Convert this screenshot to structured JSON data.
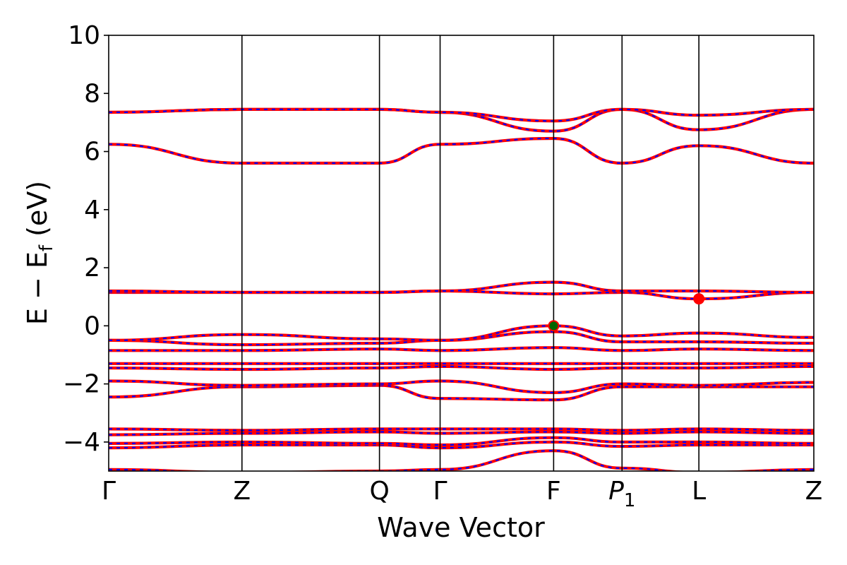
{
  "chart_data": {
    "type": "line",
    "title": "",
    "xlabel": "Wave Vector",
    "ylabel": "E − E_f (eV)",
    "ylabel_main": "E − E",
    "ylabel_sub": "f",
    "ylabel_tail": " (eV)",
    "ylim": [
      -5,
      10
    ],
    "yticks": [
      -4,
      -2,
      0,
      2,
      4,
      6,
      8,
      10
    ],
    "ytick_labels": [
      "−4",
      "−2",
      "0",
      "2",
      "4",
      "6",
      "8",
      "10"
    ],
    "xlim": [
      0,
      1
    ],
    "kpoints": [
      {
        "label": "Γ",
        "x": 0.0,
        "italic": false,
        "sub": ""
      },
      {
        "label": "Z",
        "x": 0.189,
        "italic": false,
        "sub": ""
      },
      {
        "label": "Q",
        "x": 0.384,
        "italic": false,
        "sub": ""
      },
      {
        "label": "Γ",
        "x": 0.47,
        "italic": false,
        "sub": ""
      },
      {
        "label": "F",
        "x": 0.631,
        "italic": false,
        "sub": ""
      },
      {
        "label": "P",
        "x": 0.728,
        "italic": true,
        "sub": "1"
      },
      {
        "label": "L",
        "x": 0.837,
        "italic": false,
        "sub": ""
      },
      {
        "label": "Z",
        "x": 1.0,
        "italic": false,
        "sub": ""
      }
    ],
    "grid": false,
    "legend": "none",
    "colors": {
      "band_solid": "#ff0000",
      "band_dash": "#0000ff",
      "vbm_marker": "#006400",
      "cbm_marker": "#ff0000",
      "kpath_line": "#000000"
    },
    "markers": [
      {
        "name": "vbm",
        "x": 0.631,
        "y": 0.0,
        "color": "#006400"
      },
      {
        "name": "cbm",
        "x": 0.837,
        "y": 0.93,
        "color": "#ff0000"
      }
    ],
    "bands": [
      [
        [
          0.0,
          -4.95
        ],
        [
          0.189,
          -5.05
        ],
        [
          0.384,
          -5.0
        ],
        [
          0.47,
          -4.95
        ],
        [
          0.631,
          -4.3
        ],
        [
          0.728,
          -4.9
        ],
        [
          0.837,
          -5.05
        ],
        [
          1.0,
          -4.95
        ]
      ],
      [
        [
          0.0,
          -4.2
        ],
        [
          0.189,
          -4.1
        ],
        [
          0.384,
          -4.1
        ],
        [
          0.47,
          -4.2
        ],
        [
          0.631,
          -4.0
        ],
        [
          0.728,
          -4.15
        ],
        [
          0.837,
          -4.1
        ],
        [
          1.0,
          -4.1
        ]
      ],
      [
        [
          0.0,
          -4.05
        ],
        [
          0.189,
          -4.0
        ],
        [
          0.384,
          -4.05
        ],
        [
          0.47,
          -4.1
        ],
        [
          0.631,
          -3.85
        ],
        [
          0.728,
          -4.0
        ],
        [
          0.837,
          -4.0
        ],
        [
          1.0,
          -4.05
        ]
      ],
      [
        [
          0.0,
          -3.75
        ],
        [
          0.189,
          -3.7
        ],
        [
          0.384,
          -3.65
        ],
        [
          0.47,
          -3.7
        ],
        [
          0.631,
          -3.65
        ],
        [
          0.728,
          -3.7
        ],
        [
          0.837,
          -3.65
        ],
        [
          1.0,
          -3.7
        ]
      ],
      [
        [
          0.0,
          -3.55
        ],
        [
          0.189,
          -3.6
        ],
        [
          0.384,
          -3.55
        ],
        [
          0.47,
          -3.55
        ],
        [
          0.631,
          -3.55
        ],
        [
          0.728,
          -3.6
        ],
        [
          0.837,
          -3.55
        ],
        [
          1.0,
          -3.6
        ]
      ],
      [
        [
          0.0,
          -2.45
        ],
        [
          0.189,
          -2.1
        ],
        [
          0.384,
          -2.05
        ],
        [
          0.47,
          -2.5
        ],
        [
          0.631,
          -2.55
        ],
        [
          0.728,
          -2.1
        ],
        [
          0.837,
          -2.1
        ],
        [
          1.0,
          -2.1
        ]
      ],
      [
        [
          0.0,
          -1.9
        ],
        [
          0.189,
          -2.05
        ],
        [
          0.384,
          -2.0
        ],
        [
          0.47,
          -1.9
        ],
        [
          0.631,
          -2.3
        ],
        [
          0.728,
          -2.0
        ],
        [
          0.837,
          -2.05
        ],
        [
          1.0,
          -1.95
        ]
      ],
      [
        [
          0.0,
          -1.45
        ],
        [
          0.189,
          -1.5
        ],
        [
          0.384,
          -1.45
        ],
        [
          0.47,
          -1.4
        ],
        [
          0.631,
          -1.5
        ],
        [
          0.728,
          -1.45
        ],
        [
          0.837,
          -1.45
        ],
        [
          1.0,
          -1.4
        ]
      ],
      [
        [
          0.0,
          -1.3
        ],
        [
          0.189,
          -1.3
        ],
        [
          0.384,
          -1.3
        ],
        [
          0.47,
          -1.3
        ],
        [
          0.631,
          -1.3
        ],
        [
          0.728,
          -1.3
        ],
        [
          0.837,
          -1.3
        ],
        [
          1.0,
          -1.3
        ]
      ],
      [
        [
          0.0,
          -0.85
        ],
        [
          0.189,
          -0.85
        ],
        [
          0.384,
          -0.8
        ],
        [
          0.47,
          -0.85
        ],
        [
          0.631,
          -0.75
        ],
        [
          0.728,
          -0.85
        ],
        [
          0.837,
          -0.8
        ],
        [
          1.0,
          -0.85
        ]
      ],
      [
        [
          0.0,
          -0.5
        ],
        [
          0.189,
          -0.65
        ],
        [
          0.384,
          -0.6
        ],
        [
          0.47,
          -0.5
        ],
        [
          0.631,
          -0.2
        ],
        [
          0.728,
          -0.55
        ],
        [
          0.837,
          -0.55
        ],
        [
          1.0,
          -0.6
        ]
      ],
      [
        [
          0.0,
          -0.5
        ],
        [
          0.189,
          -0.3
        ],
        [
          0.384,
          -0.45
        ],
        [
          0.47,
          -0.5
        ],
        [
          0.631,
          0.0
        ],
        [
          0.728,
          -0.35
        ],
        [
          0.837,
          -0.25
        ],
        [
          1.0,
          -0.4
        ]
      ],
      [
        [
          0.0,
          1.15
        ],
        [
          0.189,
          1.15
        ],
        [
          0.384,
          1.15
        ],
        [
          0.47,
          1.2
        ],
        [
          0.631,
          1.1
        ],
        [
          0.728,
          1.15
        ],
        [
          0.837,
          0.93
        ],
        [
          1.0,
          1.15
        ]
      ],
      [
        [
          0.0,
          1.2
        ],
        [
          0.189,
          1.15
        ],
        [
          0.384,
          1.15
        ],
        [
          0.47,
          1.2
        ],
        [
          0.631,
          1.5
        ],
        [
          0.728,
          1.2
        ],
        [
          0.837,
          1.2
        ],
        [
          1.0,
          1.15
        ]
      ],
      [
        [
          0.0,
          6.25
        ],
        [
          0.189,
          5.6
        ],
        [
          0.384,
          5.6
        ],
        [
          0.47,
          6.25
        ],
        [
          0.631,
          6.45
        ],
        [
          0.728,
          5.6
        ],
        [
          0.837,
          6.2
        ],
        [
          1.0,
          5.6
        ]
      ],
      [
        [
          0.0,
          7.35
        ],
        [
          0.189,
          7.45
        ],
        [
          0.384,
          7.45
        ],
        [
          0.47,
          7.35
        ],
        [
          0.631,
          6.7
        ],
        [
          0.728,
          7.45
        ],
        [
          0.837,
          6.75
        ],
        [
          1.0,
          7.45
        ]
      ],
      [
        [
          0.0,
          7.35
        ],
        [
          0.189,
          7.45
        ],
        [
          0.384,
          7.45
        ],
        [
          0.47,
          7.35
        ],
        [
          0.631,
          7.05
        ],
        [
          0.728,
          7.45
        ],
        [
          0.837,
          7.25
        ],
        [
          1.0,
          7.45
        ]
      ]
    ]
  }
}
